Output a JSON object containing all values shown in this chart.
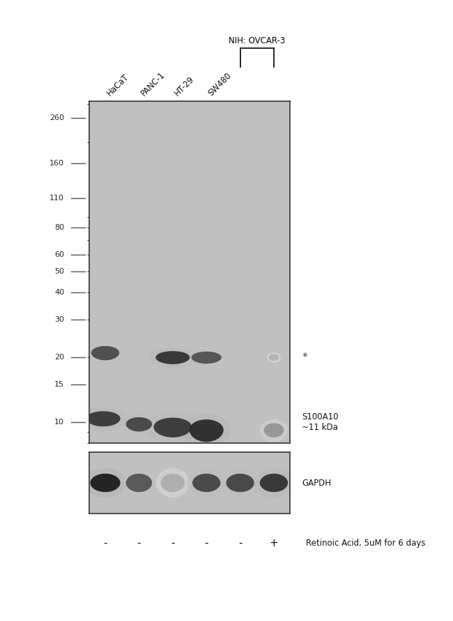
{
  "fig_width": 6.5,
  "fig_height": 8.9,
  "dpi": 100,
  "bg_color": "#ffffff",
  "gel_bg_color": "#c0c0c0",
  "lane_labels": [
    "HaCaT",
    "PANC-1",
    "HT-29",
    "SW480"
  ],
  "header_bracket_label": "NIH: OVCAR-3",
  "bracket_lanes": [
    4,
    5
  ],
  "mw_markers": [
    260,
    160,
    110,
    80,
    60,
    50,
    40,
    30,
    20,
    15,
    10
  ],
  "retinoic_acid_signs": [
    "-",
    "-",
    "-",
    "-",
    "-",
    "+"
  ],
  "retinoic_acid_label": "Retinoic Acid, 5uM for 6 days",
  "s100a10_label": "S100A10\n~11 kDa",
  "gapdh_label": "GAPDH",
  "asterisk_label": "*"
}
